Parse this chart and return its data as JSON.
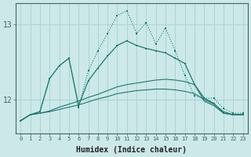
{
  "xlabel": "Humidex (Indice chaleur)",
  "background_color": "#cce8e8",
  "line_color": "#1a7a6e",
  "grid_color": "#aad4d4",
  "x_values": [
    0,
    1,
    2,
    3,
    4,
    5,
    6,
    7,
    8,
    9,
    10,
    11,
    12,
    13,
    14,
    15,
    16,
    17,
    18,
    19,
    20,
    21,
    22,
    23
  ],
  "series1": [
    11.72,
    11.8,
    11.84,
    12.28,
    12.45,
    12.55,
    11.9,
    12.38,
    12.65,
    12.88,
    13.12,
    13.18,
    12.88,
    13.02,
    12.74,
    12.95,
    12.65,
    12.32,
    12.05,
    12.02,
    12.02,
    11.88,
    11.82,
    11.82
  ],
  "series2": [
    11.72,
    11.8,
    11.84,
    12.28,
    12.45,
    12.55,
    11.92,
    12.25,
    12.42,
    12.58,
    12.72,
    12.78,
    12.72,
    12.68,
    12.65,
    12.62,
    12.55,
    12.48,
    12.2,
    12.02,
    11.95,
    11.82,
    11.8,
    11.8
  ],
  "series3": [
    11.72,
    11.8,
    11.82,
    11.85,
    11.9,
    11.94,
    11.98,
    12.03,
    12.07,
    12.12,
    12.17,
    12.2,
    12.22,
    12.24,
    12.26,
    12.27,
    12.26,
    12.24,
    12.2,
    11.98,
    11.92,
    11.82,
    11.8,
    11.8
  ],
  "series4": [
    11.72,
    11.8,
    11.82,
    11.84,
    11.87,
    11.9,
    11.93,
    11.97,
    12.01,
    12.04,
    12.08,
    12.1,
    12.12,
    12.13,
    12.14,
    12.14,
    12.13,
    12.11,
    12.08,
    12.0,
    11.94,
    11.84,
    11.8,
    11.8
  ],
  "ylim": [
    11.55,
    13.28
  ],
  "yticks": [
    12,
    13
  ],
  "xlim": [
    -0.5,
    23.5
  ],
  "figsize": [
    3.2,
    2.0
  ],
  "dpi": 100
}
